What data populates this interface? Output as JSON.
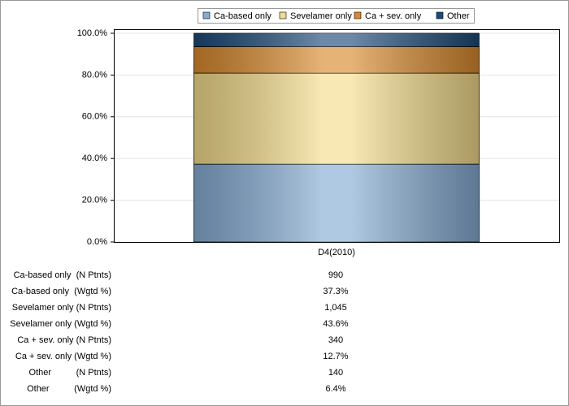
{
  "chart_data": {
    "type": "stacked_bar",
    "categories": [
      "D4(2010)"
    ],
    "series": [
      {
        "name": "Ca-based only",
        "color": "#86acd3",
        "values": [
          37.3
        ]
      },
      {
        "name": "Sevelamer only",
        "color": "#f3dc8c",
        "values": [
          43.6
        ]
      },
      {
        "name": "Ca + sev. only",
        "color": "#d88a2e",
        "values": [
          12.7
        ]
      },
      {
        "name": "Other",
        "color": "#1d4a78",
        "values": [
          6.4
        ]
      }
    ],
    "ylim": [
      0,
      100
    ],
    "yticks": [
      {
        "value": 0,
        "label": "0.0%"
      },
      {
        "value": 20,
        "label": "20.0%"
      },
      {
        "value": 40,
        "label": "40.0%"
      },
      {
        "value": 60,
        "label": "60.0%"
      },
      {
        "value": 80,
        "label": "80.0%"
      },
      {
        "value": 100,
        "label": "100.0%"
      }
    ],
    "grid": true,
    "legend": "top",
    "table": [
      [
        "Ca-based only  (N Ptnts)",
        "990"
      ],
      [
        "Ca-based only  (Wgtd %)",
        "37.3%"
      ],
      [
        "Sevelamer only (N Ptnts)",
        "1,045"
      ],
      [
        "Sevelamer only (Wgtd %)",
        "43.6%"
      ],
      [
        "Ca + sev. only (N Ptnts)",
        "340"
      ],
      [
        "Ca + sev. only (Wgtd %)",
        "12.7%"
      ],
      [
        "Other          (N Ptnts)",
        "140"
      ],
      [
        "Other          (Wgtd %)",
        "6.4%"
      ]
    ]
  }
}
